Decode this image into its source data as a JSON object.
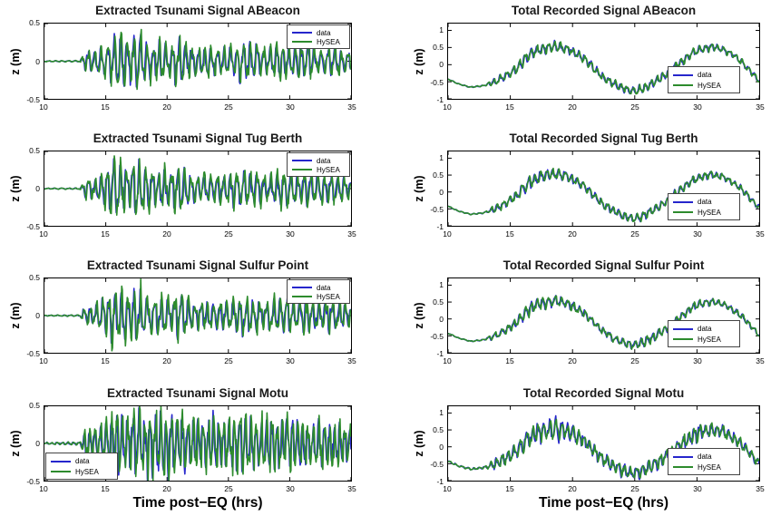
{
  "figure": {
    "background": "#ffffff",
    "series_colors": {
      "data": "#2626CC",
      "hysea": "#2D8B2D"
    },
    "axis_color": "#000000",
    "x_axis_label": "Time post−EQ (hrs)",
    "y_axis_label": "z (m)"
  },
  "profiles": {
    "env_extracted": [
      [
        10,
        0.006
      ],
      [
        12.9,
        0.01
      ],
      [
        13.3,
        0.13
      ],
      [
        14.2,
        0.14
      ],
      [
        14.9,
        0.22
      ],
      [
        15.4,
        0.36
      ],
      [
        16.1,
        0.4
      ],
      [
        16.8,
        0.3
      ],
      [
        17.4,
        0.4
      ],
      [
        18.1,
        0.33
      ],
      [
        18.8,
        0.24
      ],
      [
        19.6,
        0.28
      ],
      [
        20.4,
        0.24
      ],
      [
        20.9,
        0.33
      ],
      [
        21.6,
        0.22
      ],
      [
        22.6,
        0.18
      ],
      [
        23.6,
        0.2
      ],
      [
        24.6,
        0.18
      ],
      [
        25.4,
        0.22
      ],
      [
        26.1,
        0.28
      ],
      [
        26.9,
        0.24
      ],
      [
        28.1,
        0.18
      ],
      [
        29.1,
        0.24
      ],
      [
        29.9,
        0.26
      ],
      [
        30.6,
        0.2
      ],
      [
        31.6,
        0.22
      ],
      [
        32.6,
        0.18
      ],
      [
        33.6,
        0.2
      ],
      [
        34.5,
        0.16
      ],
      [
        35,
        0.13
      ]
    ],
    "env_extracted_motu": [
      [
        10,
        0.014
      ],
      [
        12.9,
        0.02
      ],
      [
        13.3,
        0.2
      ],
      [
        14.2,
        0.2
      ],
      [
        15,
        0.3
      ],
      [
        15.5,
        0.52
      ],
      [
        16.1,
        0.48
      ],
      [
        17,
        0.42
      ],
      [
        17.6,
        0.52
      ],
      [
        18.6,
        0.44
      ],
      [
        19.6,
        0.48
      ],
      [
        20.6,
        0.42
      ],
      [
        21.6,
        0.38
      ],
      [
        22.6,
        0.34
      ],
      [
        23.6,
        0.38
      ],
      [
        24.6,
        0.34
      ],
      [
        25.6,
        0.42
      ],
      [
        26.6,
        0.38
      ],
      [
        27.6,
        0.34
      ],
      [
        28.6,
        0.38
      ],
      [
        29.6,
        0.34
      ],
      [
        30.6,
        0.38
      ],
      [
        31.6,
        0.3
      ],
      [
        32.6,
        0.34
      ],
      [
        33.6,
        0.3
      ],
      [
        34.5,
        0.28
      ],
      [
        35,
        0.24
      ]
    ],
    "env_total": [
      [
        10,
        0.012
      ],
      [
        13,
        0.02
      ],
      [
        13.6,
        0.1
      ],
      [
        15.5,
        0.14
      ],
      [
        16.1,
        0.19
      ],
      [
        18,
        0.17
      ],
      [
        20,
        0.14
      ],
      [
        22,
        0.12
      ],
      [
        24,
        0.12
      ],
      [
        26,
        0.14
      ],
      [
        28,
        0.12
      ],
      [
        30,
        0.12
      ],
      [
        32,
        0.1
      ],
      [
        34,
        0.1
      ],
      [
        35,
        0.08
      ]
    ],
    "env_total_motu": [
      [
        10,
        0.025
      ],
      [
        13,
        0.035
      ],
      [
        13.6,
        0.16
      ],
      [
        15.5,
        0.24
      ],
      [
        16.1,
        0.28
      ],
      [
        18,
        0.28
      ],
      [
        18.6,
        0.42
      ],
      [
        19.1,
        0.28
      ],
      [
        20,
        0.24
      ],
      [
        22,
        0.2
      ],
      [
        24,
        0.2
      ],
      [
        26,
        0.22
      ],
      [
        28,
        0.2
      ],
      [
        29.7,
        0.26
      ],
      [
        31,
        0.22
      ],
      [
        32,
        0.18
      ],
      [
        34,
        0.16
      ],
      [
        35,
        0.12
      ]
    ],
    "tide": [
      [
        10,
        -0.42
      ],
      [
        10.8,
        -0.56
      ],
      [
        11.8,
        -0.66
      ],
      [
        12.8,
        -0.62
      ],
      [
        13.8,
        -0.5
      ],
      [
        14.8,
        -0.3
      ],
      [
        15.5,
        -0.12
      ],
      [
        16.2,
        0.18
      ],
      [
        17,
        0.4
      ],
      [
        18,
        0.5
      ],
      [
        18.6,
        0.54
      ],
      [
        19.4,
        0.48
      ],
      [
        20.1,
        0.36
      ],
      [
        20.9,
        0.18
      ],
      [
        21.7,
        -0.1
      ],
      [
        22.5,
        -0.38
      ],
      [
        23.3,
        -0.56
      ],
      [
        24.1,
        -0.7
      ],
      [
        24.9,
        -0.78
      ],
      [
        25.6,
        -0.72
      ],
      [
        26.4,
        -0.56
      ],
      [
        27.3,
        -0.34
      ],
      [
        28.1,
        -0.1
      ],
      [
        28.9,
        0.12
      ],
      [
        29.7,
        0.36
      ],
      [
        30.5,
        0.46
      ],
      [
        31.2,
        0.52
      ],
      [
        32,
        0.46
      ],
      [
        32.8,
        0.3
      ],
      [
        33.6,
        0.08
      ],
      [
        34.3,
        -0.2
      ],
      [
        35,
        -0.48
      ]
    ]
  },
  "chart_data": [
    {
      "id": "extracted-abeacon",
      "type": "line",
      "title": "Extracted Tsunami Signal ABeacon",
      "col": 0,
      "row": 0,
      "xlim": [
        10,
        35
      ],
      "ylim": [
        -0.5,
        0.5
      ],
      "xtick_values": [
        10,
        15,
        20,
        25,
        30,
        35
      ],
      "xtick_labels": [
        "10",
        "15",
        "20",
        "25",
        "30",
        "35"
      ],
      "ytick_values": [
        0.5,
        0,
        -0.5
      ],
      "ytick_labels": [
        "0.5",
        "0",
        "-0.5"
      ],
      "ylabel": "z (m)",
      "legend_pos": "top-right",
      "grid": false,
      "series": [
        {
          "label": "data",
          "color": "#2626CC"
        },
        {
          "label": "HySEA",
          "color": "#2D8B2D"
        }
      ],
      "signal": {
        "kind": "extracted",
        "env": "env_extracted",
        "tide": null,
        "period": 0.55,
        "seed": 11,
        "hysea_scale": 1.12,
        "data_noise": 0.15,
        "hysea_noise": 0.18
      }
    },
    {
      "id": "total-abeacon",
      "type": "line",
      "title": "Total Recorded Signal ABeacon",
      "col": 1,
      "row": 0,
      "xlim": [
        10,
        35
      ],
      "ylim": [
        -1,
        1.2
      ],
      "xtick_values": [
        10,
        15,
        20,
        25,
        30,
        35
      ],
      "xtick_labels": [
        "10",
        "15",
        "20",
        "25",
        "30",
        "35"
      ],
      "ytick_values": [
        1,
        0.5,
        0,
        -0.5,
        -1
      ],
      "ytick_labels": [
        "1",
        "0.5",
        "0",
        "-0.5",
        "-1"
      ],
      "ylabel": "z (m)",
      "legend_pos": "bottom-right",
      "grid": false,
      "series": [
        {
          "label": "data",
          "color": "#2626CC"
        },
        {
          "label": "HySEA",
          "color": "#2D8B2D"
        }
      ],
      "signal": {
        "kind": "total",
        "env": "env_total",
        "tide": "tide",
        "period": 0.5,
        "seed": 21,
        "hysea_scale": 1.02,
        "data_noise": 0.2,
        "hysea_noise": 0.18
      }
    },
    {
      "id": "extracted-tug-berth",
      "type": "line",
      "title": "Extracted Tsunami Signal Tug Berth",
      "col": 0,
      "row": 1,
      "xlim": [
        10,
        35
      ],
      "ylim": [
        -0.5,
        0.5
      ],
      "xtick_values": [
        10,
        15,
        20,
        25,
        30,
        35
      ],
      "xtick_labels": [
        "10",
        "15",
        "20",
        "25",
        "30",
        "35"
      ],
      "ytick_values": [
        0.5,
        0,
        -0.5
      ],
      "ytick_labels": [
        "0.5",
        "0",
        "-0.5"
      ],
      "ylabel": "z (m)",
      "legend_pos": "top-right",
      "grid": false,
      "series": [
        {
          "label": "data",
          "color": "#2626CC"
        },
        {
          "label": "HySEA",
          "color": "#2D8B2D"
        }
      ],
      "signal": {
        "kind": "extracted",
        "env": "env_extracted",
        "tide": null,
        "period": 0.55,
        "seed": 31,
        "hysea_scale": 1.12,
        "data_noise": 0.15,
        "hysea_noise": 0.18
      }
    },
    {
      "id": "total-tug-berth",
      "type": "line",
      "title": "Total Recorded Signal Tug Berth",
      "col": 1,
      "row": 1,
      "xlim": [
        10,
        35
      ],
      "ylim": [
        -1,
        1.2
      ],
      "xtick_values": [
        10,
        15,
        20,
        25,
        30,
        35
      ],
      "xtick_labels": [
        "10",
        "15",
        "20",
        "25",
        "30",
        "35"
      ],
      "ytick_values": [
        1,
        0.5,
        0,
        -0.5,
        -1
      ],
      "ytick_labels": [
        "1",
        "0.5",
        "0",
        "-0.5",
        "-1"
      ],
      "ylabel": "z (m)",
      "legend_pos": "bottom-right",
      "grid": false,
      "series": [
        {
          "label": "data",
          "color": "#2626CC"
        },
        {
          "label": "HySEA",
          "color": "#2D8B2D"
        }
      ],
      "signal": {
        "kind": "total",
        "env": "env_total",
        "tide": "tide",
        "period": 0.5,
        "seed": 41,
        "hysea_scale": 1.02,
        "data_noise": 0.2,
        "hysea_noise": 0.18
      }
    },
    {
      "id": "extracted-sulfur-point",
      "type": "line",
      "title": "Extracted Tsunami Signal Sulfur Point",
      "col": 0,
      "row": 2,
      "xlim": [
        10,
        35
      ],
      "ylim": [
        -0.5,
        0.5
      ],
      "xtick_values": [
        10,
        15,
        20,
        25,
        30,
        35
      ],
      "xtick_labels": [
        "10",
        "15",
        "20",
        "25",
        "30",
        "35"
      ],
      "ytick_values": [
        0.5,
        0,
        -0.5
      ],
      "ytick_labels": [
        "0.5",
        "0",
        "-0.5"
      ],
      "ylabel": "z (m)",
      "legend_pos": "top-right",
      "grid": false,
      "series": [
        {
          "label": "data",
          "color": "#2626CC"
        },
        {
          "label": "HySEA",
          "color": "#2D8B2D"
        }
      ],
      "signal": {
        "kind": "extracted",
        "env": "env_extracted",
        "tide": null,
        "period": 0.55,
        "seed": 51,
        "hysea_scale": 1.12,
        "data_noise": 0.15,
        "hysea_noise": 0.18
      }
    },
    {
      "id": "total-sulfur-point",
      "type": "line",
      "title": "Total Recorded Signal Sulfur Point",
      "col": 1,
      "row": 2,
      "xlim": [
        10,
        35
      ],
      "ylim": [
        -1,
        1.2
      ],
      "xtick_values": [
        10,
        15,
        20,
        25,
        30,
        35
      ],
      "xtick_labels": [
        "10",
        "15",
        "20",
        "25",
        "30",
        "35"
      ],
      "ytick_values": [
        1,
        0.5,
        0,
        -0.5,
        -1
      ],
      "ytick_labels": [
        "1",
        "0.5",
        "0",
        "-0.5",
        "-1"
      ],
      "ylabel": "z (m)",
      "legend_pos": "bottom-right",
      "grid": false,
      "series": [
        {
          "label": "data",
          "color": "#2626CC"
        },
        {
          "label": "HySEA",
          "color": "#2D8B2D"
        }
      ],
      "signal": {
        "kind": "total",
        "env": "env_total",
        "tide": "tide",
        "period": 0.5,
        "seed": 61,
        "hysea_scale": 1.02,
        "data_noise": 0.2,
        "hysea_noise": 0.18
      }
    },
    {
      "id": "extracted-motu",
      "type": "line",
      "title": "Extracted Tsunami Signal Motu",
      "col": 0,
      "row": 3,
      "xlim": [
        10,
        35
      ],
      "ylim": [
        -0.5,
        0.5
      ],
      "xtick_values": [
        10,
        15,
        20,
        25,
        30,
        35
      ],
      "xtick_labels": [
        "10",
        "15",
        "20",
        "25",
        "30",
        "35"
      ],
      "ytick_values": [
        0.5,
        0,
        -0.5
      ],
      "ytick_labels": [
        "0.5",
        "0",
        "-0.5"
      ],
      "ylabel": "z (m)",
      "xlabel": "Time post−EQ (hrs)",
      "legend_pos": "bottom-left",
      "grid": false,
      "series": [
        {
          "label": "data",
          "color": "#2626CC"
        },
        {
          "label": "HySEA",
          "color": "#2D8B2D"
        }
      ],
      "signal": {
        "kind": "extracted",
        "env": "env_extracted_motu",
        "tide": null,
        "period": 0.45,
        "seed": 71,
        "hysea_scale": 1.1,
        "data_noise": 0.18,
        "hysea_noise": 0.2
      }
    },
    {
      "id": "total-motu",
      "type": "line",
      "title": "Total Recorded Signal Motu",
      "col": 1,
      "row": 3,
      "xlim": [
        10,
        35
      ],
      "ylim": [
        -1,
        1.2
      ],
      "xtick_values": [
        10,
        15,
        20,
        25,
        30,
        35
      ],
      "xtick_labels": [
        "10",
        "15",
        "20",
        "25",
        "30",
        "35"
      ],
      "ytick_values": [
        1,
        0.5,
        0,
        -0.5,
        -1
      ],
      "ytick_labels": [
        "1",
        "0.5",
        "0",
        "-0.5",
        "-1"
      ],
      "ylabel": "z (m)",
      "xlabel": "Time post−EQ (hrs)",
      "legend_pos": "bottom-right",
      "grid": false,
      "series": [
        {
          "label": "data",
          "color": "#2626CC"
        },
        {
          "label": "HySEA",
          "color": "#2D8B2D"
        }
      ],
      "signal": {
        "kind": "total",
        "env": "env_total_motu",
        "tide": "tide",
        "period": 0.48,
        "seed": 81,
        "hysea_scale": 1.0,
        "data_noise": 0.24,
        "hysea_noise": 0.18
      }
    }
  ]
}
